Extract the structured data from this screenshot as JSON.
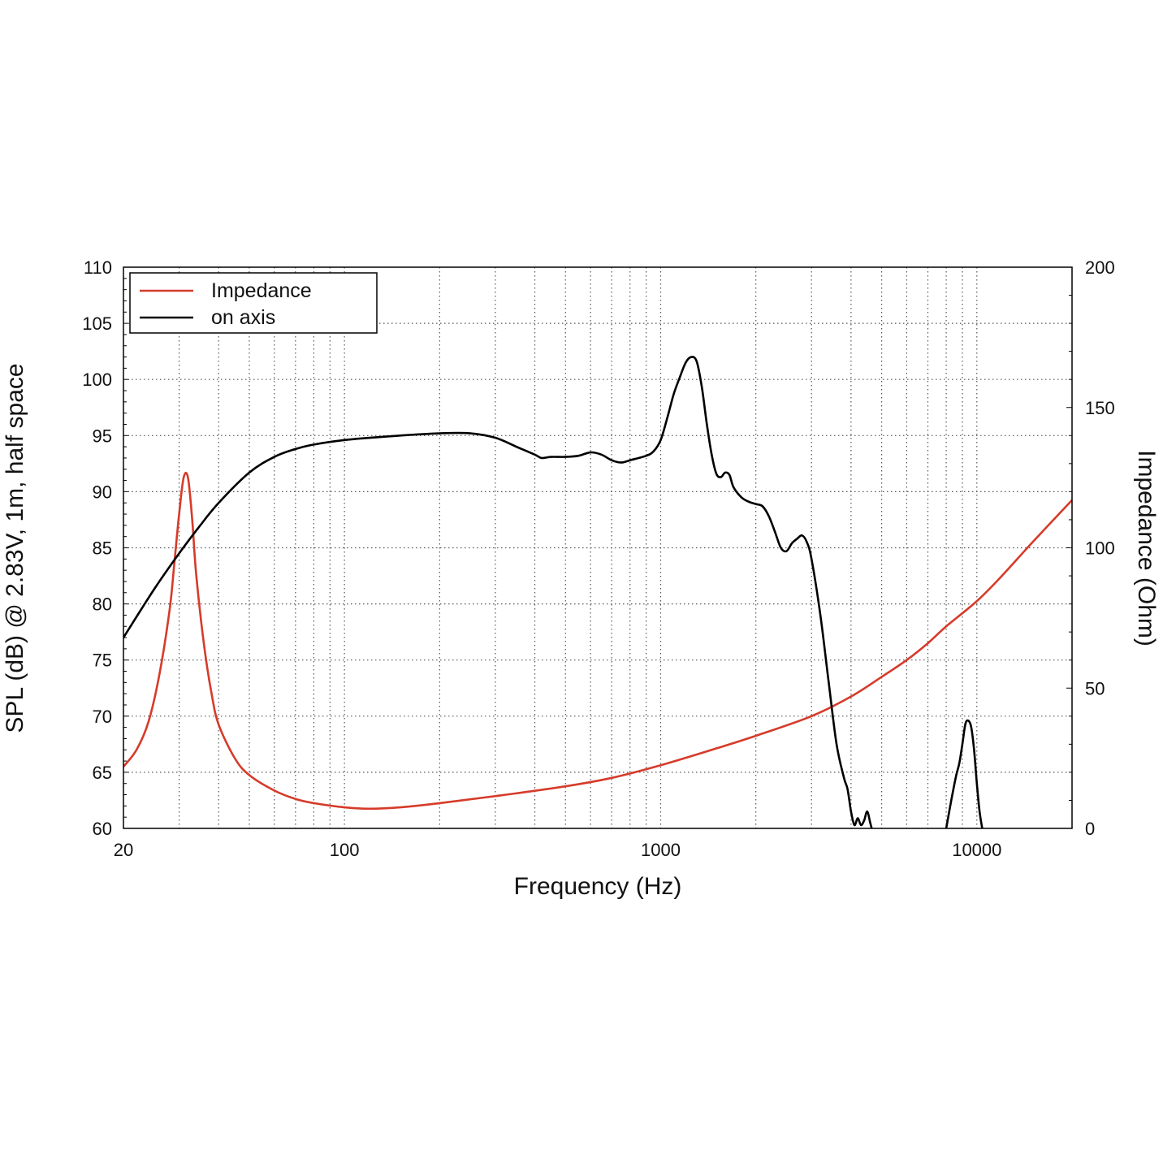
{
  "chart_data": {
    "type": "line",
    "xlabel": "Frequency (Hz)",
    "ylabel_left": "SPL (dB) @ 2.83V, 1m, half space",
    "ylabel_right": "Impedance (Ohm)",
    "x_scale": "log",
    "xlim": [
      20,
      20000
    ],
    "ylim_left": [
      60,
      110
    ],
    "ylim_right": [
      0,
      200
    ],
    "x_ticks": [
      "20",
      "100",
      "1000",
      "10000"
    ],
    "y_ticks_left": [
      "60",
      "65",
      "70",
      "75",
      "80",
      "85",
      "90",
      "95",
      "100",
      "105",
      "110"
    ],
    "y_ticks_right": [
      "0",
      "50",
      "100",
      "150",
      "200"
    ],
    "grid": true,
    "legend_position": "top-left",
    "colors": {
      "impedance": "#d63b2a",
      "spl": "#000000",
      "grid": "#555555"
    },
    "series": [
      {
        "name": "Impedance",
        "axis": "right",
        "color": "#d63b2a",
        "x": [
          20,
          22,
          24,
          26,
          28,
          29,
          30,
          31,
          32,
          33,
          34,
          36,
          38,
          40,
          45,
          50,
          60,
          70,
          80,
          100,
          120,
          150,
          200,
          300,
          500,
          700,
          1000,
          1500,
          2000,
          3000,
          4000,
          5000,
          6000,
          7000,
          8000,
          10000,
          12000,
          15000,
          20000
        ],
        "y": [
          22,
          28,
          38,
          55,
          78,
          95,
          112,
          125,
          125,
          110,
          90,
          65,
          48,
          37,
          25,
          19,
          13.5,
          10.5,
          9,
          7.5,
          7,
          7.5,
          9,
          11.5,
          15,
          18,
          22.5,
          28.5,
          33,
          40,
          47,
          54,
          60,
          66,
          72,
          81,
          90,
          102,
          117
        ]
      },
      {
        "name": "on axis",
        "axis": "left",
        "color": "#000000",
        "segments": [
          {
            "x": [
              20,
              25,
              30,
              35,
              40,
              50,
              60,
              70,
              80,
              100,
              120,
              150,
              200,
              250,
              300,
              350,
              400,
              420,
              450,
              500,
              550,
              600,
              650,
              700,
              750,
              800,
              900,
              950,
              1000,
              1050,
              1100,
              1150,
              1200,
              1250,
              1300,
              1350,
              1400,
              1450,
              1500,
              1550,
              1600,
              1650,
              1700,
              1800,
              1900,
              2000,
              2100,
              2200,
              2300,
              2400,
              2500,
              2600,
              2700,
              2800,
              2900,
              3000,
              3200,
              3400,
              3600,
              3800,
              3900,
              4000,
              4100,
              4200,
              4300,
              4400,
              4500,
              4600,
              4650
            ],
            "y": [
              77,
              81.3,
              84.5,
              87,
              89,
              91.7,
              93.1,
              93.8,
              94.2,
              94.6,
              94.8,
              95,
              95.2,
              95.2,
              94.8,
              94,
              93.3,
              93,
              93.1,
              93.1,
              93.2,
              93.5,
              93.3,
              92.8,
              92.6,
              92.8,
              93.2,
              93.6,
              94.6,
              96.6,
              98.7,
              100.2,
              101.5,
              102,
              101.6,
              99.3,
              96,
              93.3,
              91.6,
              91.3,
              91.7,
              91.5,
              90.4,
              89.5,
              89.1,
              88.9,
              88.7,
              87.8,
              86.4,
              85,
              84.7,
              85.4,
              85.8,
              86.1,
              85.5,
              84,
              79,
              73,
              67.5,
              64.5,
              63.5,
              61.5,
              60.3,
              60.9,
              60.3,
              60.7,
              61.5,
              60.5,
              60
            ]
          },
          {
            "x": [
              8000,
              8300,
              8600,
              8800,
              9000,
              9200,
              9400,
              9600,
              9800,
              10000,
              10200,
              10400
            ],
            "y": [
              60,
              62.5,
              64.7,
              65.8,
              67.5,
              69.3,
              69.6,
              69,
              67,
              64,
              61.5,
              60
            ]
          }
        ]
      }
    ]
  }
}
